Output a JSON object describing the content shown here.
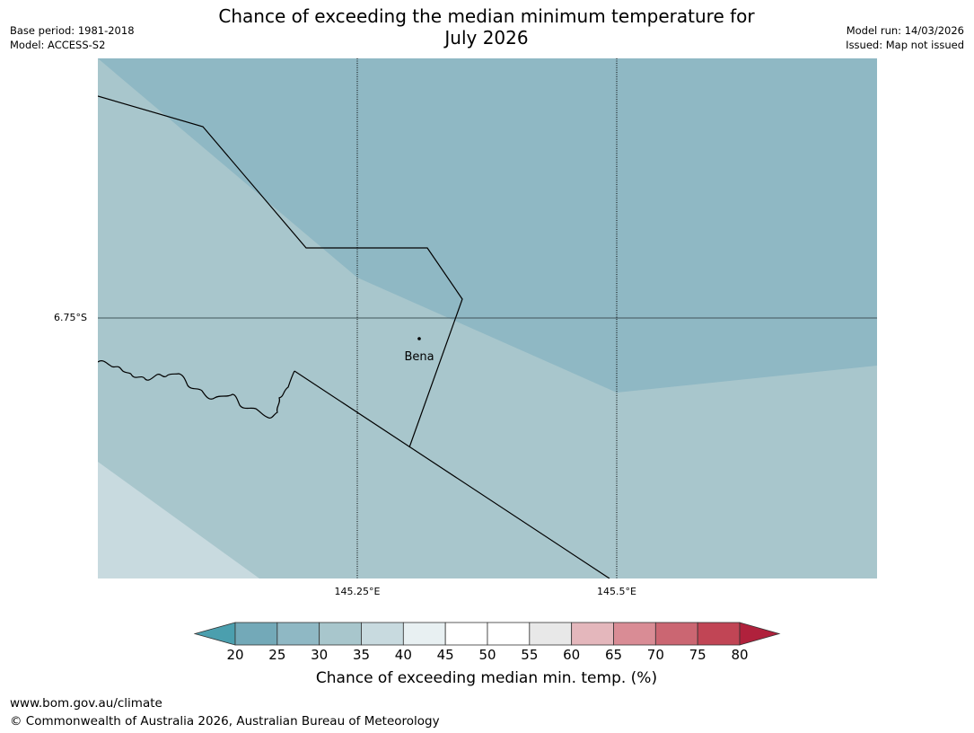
{
  "header": {
    "title_line1": "Chance of exceeding the median minimum temperature for",
    "title_line2": "July 2026",
    "base_period": "Base period: 1981-2018",
    "model": "Model: ACCESS-S2",
    "model_run": "Model run: 14/03/2026",
    "issued": "Issued: Map not issued"
  },
  "map": {
    "latitude_labels": [
      "6.75°S"
    ],
    "longitude_labels": [
      "145.25°E",
      "145.5°E"
    ],
    "places": [
      {
        "name": "Bena"
      }
    ],
    "fill_colors": {
      "band_20_25": "#73a9b8",
      "band_25_30": "#8fb8c4",
      "band_30_35": "#a8c6cc",
      "band_35_40": "#c8dadf"
    }
  },
  "colorbar": {
    "title": "Chance of exceeding median min. temp. (%)",
    "ticks": [
      "20",
      "25",
      "30",
      "35",
      "40",
      "45",
      "50",
      "55",
      "60",
      "65",
      "70",
      "75",
      "80"
    ],
    "low_extend_color": "#4b9fae",
    "high_extend_color": "#b0213c",
    "segments": [
      "#73a9b8",
      "#8fb8c4",
      "#a8c6cc",
      "#c8dadf",
      "#e8f0f2",
      "#ffffff",
      "#ffffff",
      "#e8e8e8",
      "#e4b7bc",
      "#d98c95",
      "#cb6672",
      "#c14555"
    ]
  },
  "footer": {
    "url": "www.bom.gov.au/climate",
    "copyright": "© Commonwealth of Australia 2026, Australian Bureau of Meteorology"
  }
}
